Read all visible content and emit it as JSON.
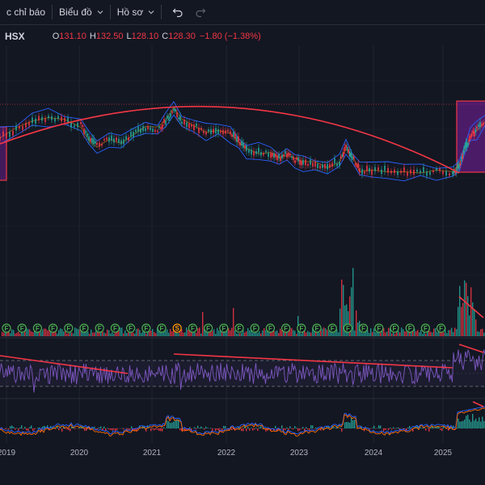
{
  "toolbar": {
    "indicators_label": "c chỉ báo",
    "charts_label": "Biểu đồ",
    "profile_label": "Hồ sơ"
  },
  "legend": {
    "symbol": "HSX",
    "open_key": "O",
    "open": "131.10",
    "high_key": "H",
    "high": "132.50",
    "low_key": "L",
    "low": "128.10",
    "close_key": "C",
    "close": "128.30",
    "change": "−1.80 (−1.38%)"
  },
  "colors": {
    "up": "#26a69a",
    "down": "#f23645",
    "trendline": "#f23645",
    "band": "#2962ff",
    "rsi": "#7e57c2",
    "highlight": "#7b1fa2",
    "event_f": "#4caf50",
    "event_s": "#ff9800"
  },
  "event_markers": [
    "F",
    "F",
    "F",
    "F",
    "F",
    "F",
    "F",
    "F",
    "F",
    "F",
    "F",
    "S",
    "F",
    "F",
    "F",
    "F",
    "F",
    "F",
    "F",
    "F",
    "F",
    "F",
    "F",
    "F",
    "F",
    "F",
    "F",
    "F",
    "F"
  ],
  "chart_data": {
    "type": "line",
    "x": [
      "2019",
      "2020",
      "2021",
      "2022",
      "2023",
      "2024",
      "2025"
    ],
    "xlabels": [
      "2019",
      "2020",
      "2021",
      "2022",
      "2023",
      "2024",
      "2025"
    ]
  }
}
